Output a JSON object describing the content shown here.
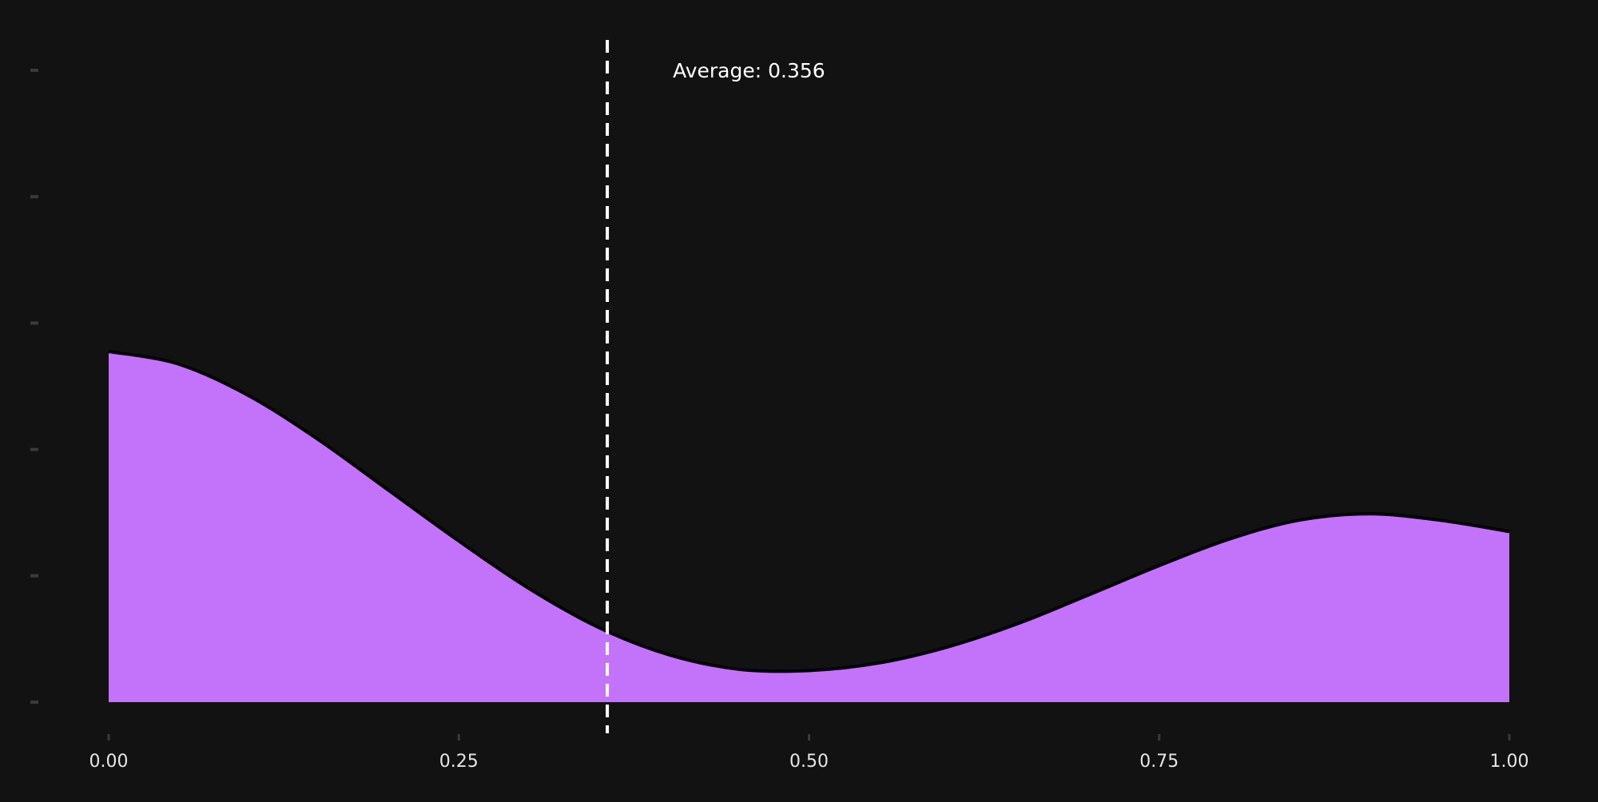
{
  "chart_data": {
    "type": "area",
    "title": "",
    "xlabel": "",
    "ylabel": "",
    "xlim": [
      0,
      1
    ],
    "ylim": [
      0,
      1.05
    ],
    "x_ticks": [
      {
        "value": 0.0,
        "label": "0.00"
      },
      {
        "value": 0.25,
        "label": "0.25"
      },
      {
        "value": 0.5,
        "label": "0.50"
      },
      {
        "value": 0.75,
        "label": "0.75"
      },
      {
        "value": 1.0,
        "label": "1.00"
      }
    ],
    "y_ticks": [
      0,
      0.2,
      0.4,
      0.6,
      0.8,
      1.0
    ],
    "y_tick_labels_shown": false,
    "grid": false,
    "series": [
      {
        "x": [
          0.0,
          0.05,
          0.1,
          0.15,
          0.2,
          0.25,
          0.3,
          0.35,
          0.4,
          0.45,
          0.5,
          0.55,
          0.6,
          0.65,
          0.7,
          0.75,
          0.8,
          0.85,
          0.9,
          0.95,
          1.0
        ],
        "y": [
          0.555,
          0.535,
          0.485,
          0.415,
          0.335,
          0.255,
          0.18,
          0.118,
          0.075,
          0.052,
          0.05,
          0.062,
          0.088,
          0.125,
          0.17,
          0.216,
          0.258,
          0.288,
          0.298,
          0.288,
          0.27
        ]
      }
    ],
    "reference_line": {
      "x": 0.356,
      "label": "Average: 0.356",
      "style": "dashed"
    },
    "colors": {
      "background": "#121213",
      "fill": "#c373fa",
      "curve_stroke": "#000000",
      "reference_line": "#ffffff",
      "tick_mark": "#3a3a3c",
      "tick_label": "#e6e6e6",
      "annotation_text": "#ffffff"
    }
  }
}
